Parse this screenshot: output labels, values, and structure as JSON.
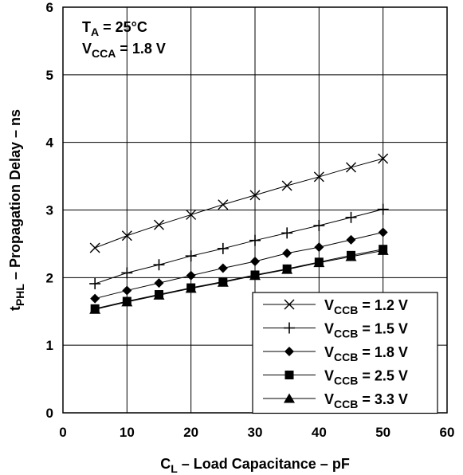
{
  "chart_data": {
    "type": "line",
    "x_axis": {
      "label_main": "C",
      "label_sub": "L",
      "label_rest": " – Load Capacitance – pF",
      "range": [
        0,
        60
      ],
      "ticks": [
        0,
        10,
        20,
        30,
        40,
        50,
        60
      ]
    },
    "y_axis": {
      "label_main": "t",
      "label_sub": "PHL",
      "label_rest": " – Propagation Delay – ns",
      "range": [
        0,
        6
      ],
      "ticks": [
        0,
        1,
        2,
        3,
        4,
        5,
        6
      ]
    },
    "grid": true,
    "annotations": [
      {
        "main": "T",
        "sub": "A",
        "rest": " = 25°C"
      },
      {
        "main": "V",
        "sub": "CCA",
        "rest": " = 1.8 V"
      }
    ],
    "legend_position": "bottom-right",
    "x": [
      5,
      10,
      15,
      20,
      25,
      30,
      35,
      40,
      45,
      50
    ],
    "series": [
      {
        "name_main": "V",
        "name_sub": "CCB",
        "name_rest": " = 1.2 V",
        "marker": "x",
        "values": [
          2.44,
          2.62,
          2.78,
          2.93,
          3.08,
          3.22,
          3.36,
          3.49,
          3.63,
          3.76
        ]
      },
      {
        "name_main": "V",
        "name_sub": "CCB",
        "name_rest": " = 1.5 V",
        "marker": "plus",
        "values": [
          1.91,
          2.07,
          2.19,
          2.32,
          2.43,
          2.55,
          2.66,
          2.77,
          2.89,
          3.01
        ]
      },
      {
        "name_main": "V",
        "name_sub": "CCB",
        "name_rest": " = 1.8 V",
        "marker": "diamond",
        "values": [
          1.69,
          1.81,
          1.92,
          2.03,
          2.14,
          2.24,
          2.36,
          2.45,
          2.56,
          2.67
        ]
      },
      {
        "name_main": "V",
        "name_sub": "CCB",
        "name_rest": " = 2.5 V",
        "marker": "square",
        "values": [
          1.54,
          1.65,
          1.75,
          1.85,
          1.94,
          2.04,
          2.13,
          2.23,
          2.33,
          2.42
        ]
      },
      {
        "name_main": "V",
        "name_sub": "CCB",
        "name_rest": " = 3.3 V",
        "marker": "triangle",
        "values": [
          1.53,
          1.64,
          1.74,
          1.84,
          1.93,
          2.03,
          2.12,
          2.22,
          2.31,
          2.4
        ]
      }
    ]
  }
}
